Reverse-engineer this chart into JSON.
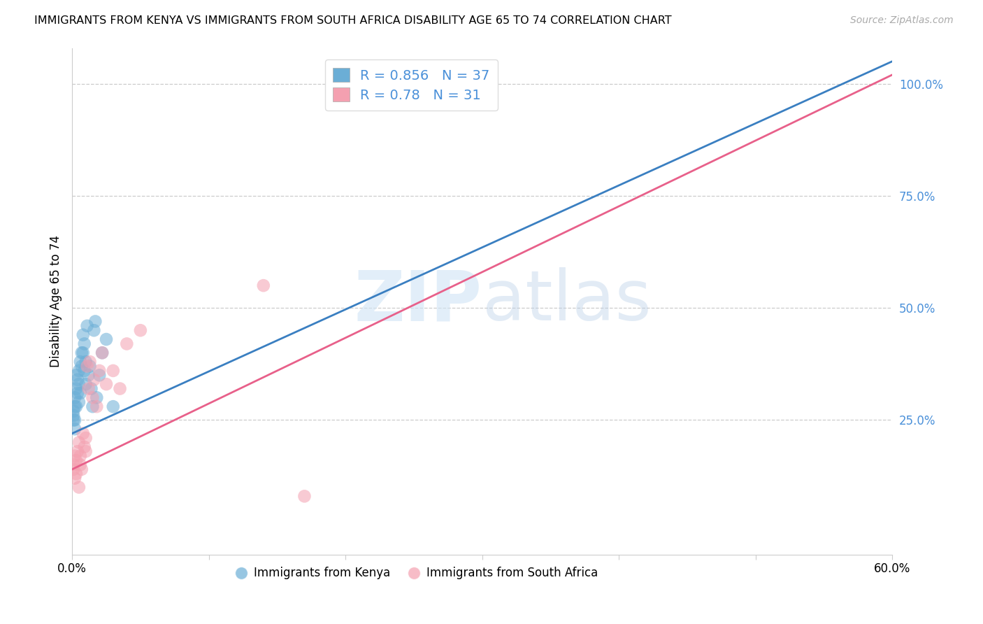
{
  "title": "IMMIGRANTS FROM KENYA VS IMMIGRANTS FROM SOUTH AFRICA DISABILITY AGE 65 TO 74 CORRELATION CHART",
  "source": "Source: ZipAtlas.com",
  "ylabel": "Disability Age 65 to 74",
  "xlim": [
    0.0,
    0.6
  ],
  "ylim": [
    -0.05,
    1.08
  ],
  "xticks": [
    0.0,
    0.1,
    0.2,
    0.3,
    0.4,
    0.5,
    0.6
  ],
  "xticklabels": [
    "0.0%",
    "",
    "",
    "",
    "",
    "",
    "60.0%"
  ],
  "yticks_right": [
    0.25,
    0.5,
    0.75,
    1.0
  ],
  "ytick_right_labels": [
    "25.0%",
    "50.0%",
    "75.0%",
    "100.0%"
  ],
  "kenya_R": 0.856,
  "kenya_N": 37,
  "sa_R": 0.78,
  "sa_N": 31,
  "kenya_color": "#6baed6",
  "sa_color": "#f4a0b0",
  "kenya_line_color": "#3a7fc1",
  "sa_line_color": "#e8608a",
  "legend_label_kenya": "Immigrants from Kenya",
  "legend_label_sa": "Immigrants from South Africa",
  "watermark_zip": "ZIP",
  "watermark_atlas": "atlas",
  "kenya_line_x0": 0.0,
  "kenya_line_y0": 0.22,
  "kenya_line_x1": 0.6,
  "kenya_line_y1": 1.05,
  "sa_line_x0": 0.0,
  "sa_line_y0": 0.14,
  "sa_line_x1": 0.6,
  "sa_line_y1": 1.02,
  "kenya_x": [
    0.001,
    0.001,
    0.001,
    0.002,
    0.002,
    0.002,
    0.002,
    0.003,
    0.003,
    0.003,
    0.004,
    0.004,
    0.005,
    0.005,
    0.005,
    0.006,
    0.006,
    0.007,
    0.007,
    0.008,
    0.008,
    0.009,
    0.009,
    0.01,
    0.01,
    0.011,
    0.012,
    0.013,
    0.014,
    0.015,
    0.016,
    0.017,
    0.018,
    0.02,
    0.022,
    0.025,
    0.03
  ],
  "kenya_y": [
    0.25,
    0.26,
    0.27,
    0.23,
    0.25,
    0.28,
    0.3,
    0.28,
    0.32,
    0.35,
    0.31,
    0.34,
    0.29,
    0.33,
    0.36,
    0.31,
    0.38,
    0.37,
    0.4,
    0.4,
    0.44,
    0.36,
    0.42,
    0.38,
    0.33,
    0.46,
    0.35,
    0.37,
    0.32,
    0.28,
    0.45,
    0.47,
    0.3,
    0.35,
    0.4,
    0.43,
    0.28
  ],
  "sa_x": [
    0.001,
    0.001,
    0.002,
    0.002,
    0.003,
    0.003,
    0.004,
    0.005,
    0.005,
    0.006,
    0.006,
    0.007,
    0.008,
    0.009,
    0.01,
    0.01,
    0.011,
    0.012,
    0.013,
    0.015,
    0.016,
    0.018,
    0.02,
    0.022,
    0.025,
    0.03,
    0.035,
    0.04,
    0.05,
    0.14,
    0.17
  ],
  "sa_y": [
    0.14,
    0.15,
    0.12,
    0.17,
    0.13,
    0.16,
    0.18,
    0.1,
    0.2,
    0.15,
    0.17,
    0.14,
    0.22,
    0.19,
    0.18,
    0.21,
    0.37,
    0.32,
    0.38,
    0.3,
    0.34,
    0.28,
    0.36,
    0.4,
    0.33,
    0.36,
    0.32,
    0.42,
    0.45,
    0.55,
    0.08
  ],
  "background_color": "#ffffff",
  "grid_color": "#cccccc"
}
